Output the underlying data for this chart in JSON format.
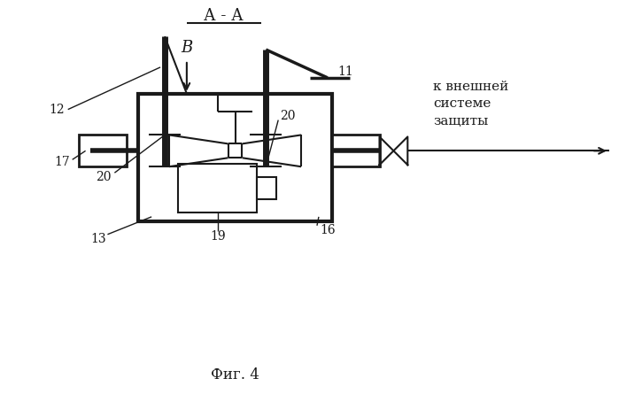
{
  "bg_color": "#ffffff",
  "line_color": "#1a1a1a",
  "title": "А - А",
  "fig_label": "Фиг. 4",
  "annotation_text": "к внешней\nсистеме\nзащиты"
}
